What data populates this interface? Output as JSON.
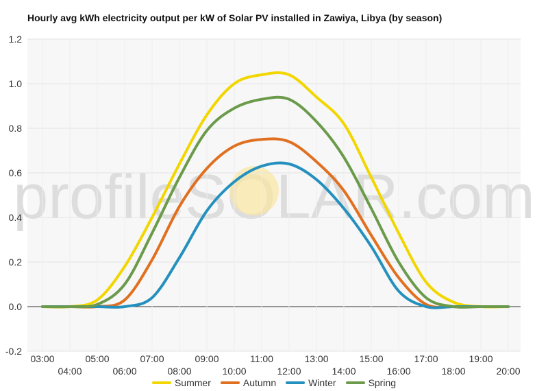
{
  "chart_data": {
    "type": "line",
    "title": "Hourly avg kWh electricity output per kW of Solar PV installed in Zawiya, Libya (by season)",
    "xlabel": "",
    "ylabel": "",
    "x": [
      "03:00",
      "04:00",
      "05:00",
      "06:00",
      "07:00",
      "08:00",
      "09:00",
      "10:00",
      "11:00",
      "12:00",
      "13:00",
      "14:00",
      "15:00",
      "16:00",
      "17:00",
      "18:00",
      "19:00",
      "20:00"
    ],
    "ylim": [
      -0.2,
      1.2
    ],
    "yticks": [
      "-0.2",
      "0.0",
      "0.2",
      "0.4",
      "0.6",
      "0.8",
      "1.0",
      "1.2"
    ],
    "grid": true,
    "legend_position": "bottom",
    "watermark": "profileSOLAR.com",
    "series": [
      {
        "name": "Summer",
        "color": "#f2d600",
        "values": [
          0.0,
          0.0,
          0.03,
          0.18,
          0.4,
          0.64,
          0.86,
          1.0,
          1.04,
          1.04,
          0.94,
          0.82,
          0.58,
          0.33,
          0.11,
          0.02,
          0.0,
          0.0
        ]
      },
      {
        "name": "Autumn",
        "color": "#e07020",
        "values": [
          0.0,
          0.0,
          0.0,
          0.03,
          0.21,
          0.45,
          0.62,
          0.72,
          0.75,
          0.74,
          0.65,
          0.52,
          0.32,
          0.13,
          0.01,
          0.0,
          0.0,
          0.0
        ]
      },
      {
        "name": "Winter",
        "color": "#2490bd",
        "values": [
          0.0,
          0.0,
          0.0,
          0.0,
          0.04,
          0.22,
          0.43,
          0.56,
          0.63,
          0.64,
          0.57,
          0.44,
          0.27,
          0.07,
          0.0,
          0.0,
          0.0,
          0.0
        ]
      },
      {
        "name": "Spring",
        "color": "#6a9a4a",
        "values": [
          0.0,
          0.0,
          0.01,
          0.1,
          0.33,
          0.58,
          0.79,
          0.89,
          0.93,
          0.93,
          0.83,
          0.67,
          0.44,
          0.2,
          0.04,
          0.0,
          0.0,
          0.0
        ]
      }
    ]
  }
}
